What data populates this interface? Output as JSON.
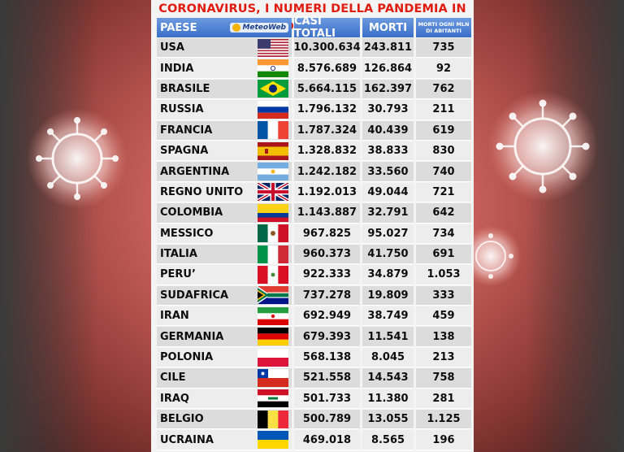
{
  "title": "CORONAVIRUS, I NUMERI DELLA PANDEMIA IN DIRETTA",
  "header": {
    "paese": "PAESE",
    "logo": "MeteoWeb",
    "casi_totali": "CASI TOTALI",
    "morti": "MORTI",
    "morti_mln_line1": "MORTI OGNI MLN",
    "morti_mln_line2": "DI ABITANTI"
  },
  "rows": [
    {
      "paese": "USA",
      "casi": "10.300.634",
      "morti": "243.811",
      "mln": "735",
      "flag": "usa-flag-icon"
    },
    {
      "paese": "INDIA",
      "casi": "8.576.689",
      "morti": "126.864",
      "mln": "92",
      "flag": "india-flag-icon"
    },
    {
      "paese": "BRASILE",
      "casi": "5.664.115",
      "morti": "162.397",
      "mln": "762",
      "flag": "brazil-flag-icon"
    },
    {
      "paese": "RUSSIA",
      "casi": "1.796.132",
      "morti": "30.793",
      "mln": "211",
      "flag": "russia-flag-icon"
    },
    {
      "paese": "FRANCIA",
      "casi": "1.787.324",
      "morti": "40.439",
      "mln": "619",
      "flag": "france-flag-icon"
    },
    {
      "paese": "SPAGNA",
      "casi": "1.328.832",
      "morti": "38.833",
      "mln": "830",
      "flag": "spain-flag-icon"
    },
    {
      "paese": "ARGENTINA",
      "casi": "1.242.182",
      "morti": "33.560",
      "mln": "740",
      "flag": "argentina-flag-icon"
    },
    {
      "paese": "REGNO UNITO",
      "casi": "1.192.013",
      "morti": "49.044",
      "mln": "721",
      "flag": "uk-flag-icon"
    },
    {
      "paese": "COLOMBIA",
      "casi": "1.143.887",
      "morti": "32.791",
      "mln": "642",
      "flag": "colombia-flag-icon"
    },
    {
      "paese": "MESSICO",
      "casi": "967.825",
      "morti": "95.027",
      "mln": "734",
      "flag": "mexico-flag-icon"
    },
    {
      "paese": "ITALIA",
      "casi": "960.373",
      "morti": "41.750",
      "mln": "691",
      "flag": "italy-flag-icon"
    },
    {
      "paese": "PERU’",
      "casi": "922.333",
      "morti": "34.879",
      "mln": "1.053",
      "flag": "peru-flag-icon"
    },
    {
      "paese": "SUDAFRICA",
      "casi": "737.278",
      "morti": "19.809",
      "mln": "333",
      "flag": "south-africa-flag-icon"
    },
    {
      "paese": "IRAN",
      "casi": "692.949",
      "morti": "38.749",
      "mln": "459",
      "flag": "iran-flag-icon"
    },
    {
      "paese": "GERMANIA",
      "casi": "679.393",
      "morti": "11.541",
      "mln": "138",
      "flag": "germany-flag-icon"
    },
    {
      "paese": "POLONIA",
      "casi": "568.138",
      "morti": "8.045",
      "mln": "213",
      "flag": "poland-flag-icon"
    },
    {
      "paese": "CILE",
      "casi": "521.558",
      "morti": "14.543",
      "mln": "758",
      "flag": "chile-flag-icon"
    },
    {
      "paese": "IRAQ",
      "casi": "501.733",
      "morti": "11.380",
      "mln": "281",
      "flag": "iraq-flag-icon"
    },
    {
      "paese": "BELGIO",
      "casi": "500.789",
      "morti": "13.055",
      "mln": "1.125",
      "flag": "belgium-flag-icon"
    },
    {
      "paese": "UCRAINA",
      "casi": "469.018",
      "morti": "8.565",
      "mln": "196",
      "flag": "ukraine-flag-icon"
    }
  ],
  "colors": {
    "title": "#e01b10",
    "header_bg": "#3a6fc8",
    "row_odd": "#dcdcdc",
    "row_even": "#ededed"
  }
}
